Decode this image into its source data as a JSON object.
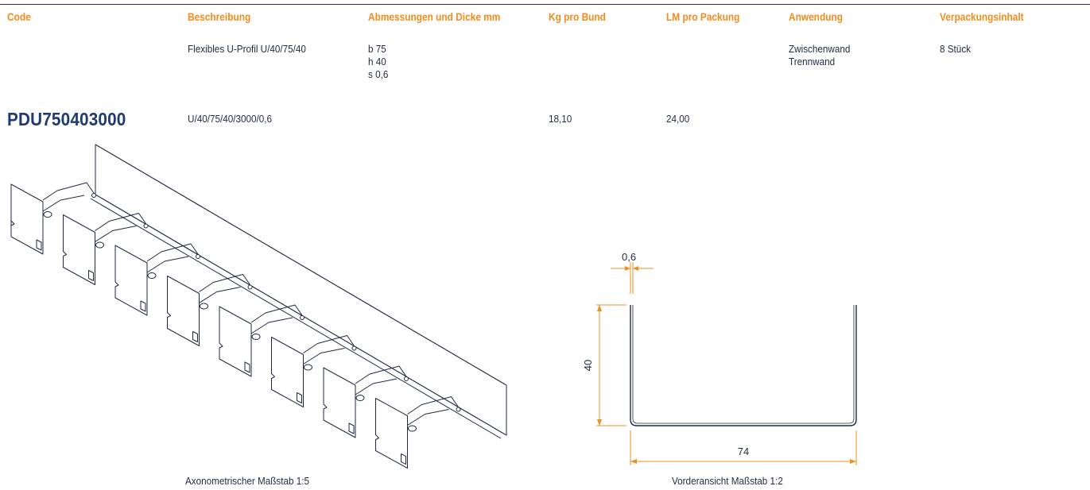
{
  "colors": {
    "accent": "#f28c1c",
    "ink": "#1f2a44",
    "brand": "#1f3a6e"
  },
  "table": {
    "headers": [
      "Code",
      "Beschreibung",
      "Abmessungen und Dicke mm",
      "Kg pro Bund",
      "LM pro Packung",
      "Anwendung",
      "Verpackungsinhalt"
    ],
    "description": "Flexibles U-Profil U/40/75/40",
    "dimensions": [
      "b 75",
      "h 40",
      "s 0,6"
    ],
    "applications": [
      "Zwischenwand",
      "Trennwand"
    ],
    "package_content": "8 Stück",
    "item": {
      "code": "PDU750403000",
      "spec": "U/40/75/40/3000/0,6",
      "kg_per_bundle": "18,10",
      "lm_per_pack": "24,00"
    }
  },
  "drawings": {
    "axonometric_caption": "Axonometrischer Maßstab 1:5",
    "front_caption": "Vorderansicht Maßstab 1:2",
    "dim_thickness": "0,6",
    "dim_height": "40",
    "dim_width": "74"
  }
}
